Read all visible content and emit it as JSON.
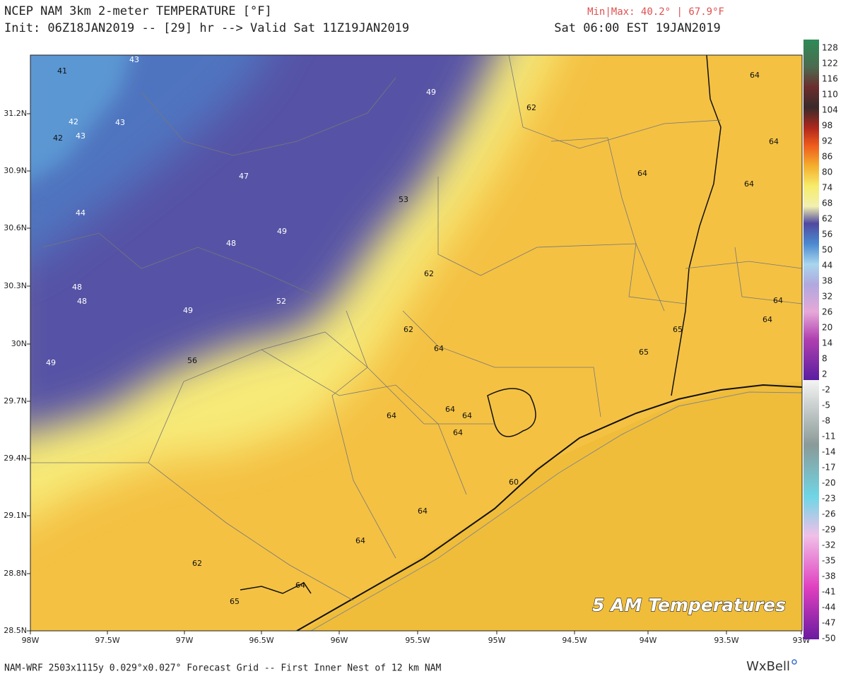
{
  "header": {
    "title": "NCEP NAM 3km 2-meter TEMPERATURE [°F]",
    "init": "Init: 06Z18JAN2019 -- [29] hr --> Valid Sat 11Z19JAN2019",
    "minmax": "Min|Max: 40.2° | 67.9°F",
    "valid_local": "Sat 06:00 EST 19JAN2019"
  },
  "map": {
    "lat_labels": [
      "31.2N",
      "30.9N",
      "30.6N",
      "30.3N",
      "30N",
      "29.7N",
      "29.4N",
      "29.1N",
      "28.8N",
      "28.5N"
    ],
    "lon_labels": [
      "98W",
      "97.5W",
      "97W",
      "96.5W",
      "96W",
      "95.5W",
      "95W",
      "94.5W",
      "94W",
      "93.5W",
      "93W"
    ],
    "temperature_labels": [
      43,
      41,
      49,
      62,
      64,
      42,
      43,
      42,
      43,
      64,
      47,
      64,
      64,
      53,
      44,
      49,
      48,
      62,
      48,
      48,
      52,
      64,
      49,
      64,
      62,
      65,
      64,
      65,
      56,
      49,
      64,
      64,
      64,
      64,
      60,
      64,
      64,
      62,
      64,
      65
    ],
    "overlay": "5 AM Temperatures"
  },
  "colorbar": {
    "labels": [
      128,
      122,
      116,
      110,
      104,
      98,
      92,
      86,
      80,
      74,
      68,
      62,
      56,
      50,
      44,
      38,
      32,
      26,
      20,
      14,
      8,
      2,
      -2,
      -5,
      -8,
      -11,
      -14,
      -17,
      -20,
      -23,
      -26,
      -29,
      -32,
      -35,
      -38,
      -41,
      -44,
      -47,
      -50
    ]
  },
  "footer": {
    "grid_info": "NAM-WRF 2503x1115y 0.029°x0.027° Forecast Grid -- First Inner Nest of 12 km NAM",
    "logo": "WxBell"
  }
}
